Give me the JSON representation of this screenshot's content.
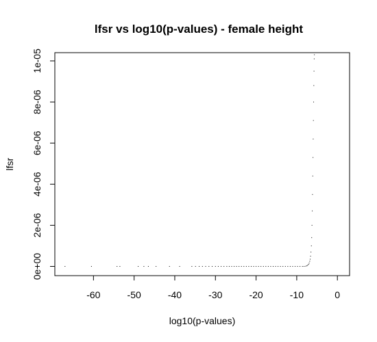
{
  "chart_data": {
    "type": "scatter",
    "title": "lfsr vs log10(p-values) - female height",
    "xlabel": "log10(p-values)",
    "ylabel": "lfsr",
    "xlim": [
      -69.5,
      3
    ],
    "ylim": [
      -4.5e-07,
      1.04e-05
    ],
    "x_ticks": [
      -60,
      -50,
      -40,
      -30,
      -20,
      -10,
      0
    ],
    "x_tick_labels": [
      "-60",
      "-50",
      "-40",
      "-30",
      "-20",
      "-10",
      "0"
    ],
    "y_ticks": [
      0,
      2e-06,
      4e-06,
      6e-06,
      8e-06,
      1e-05
    ],
    "y_tick_labels": [
      "0e+00",
      "2e-06",
      "4e-06",
      "6e-06",
      "8e-06",
      "1e-05"
    ],
    "grid": false,
    "legend": "none",
    "point_color": "#000000",
    "points": [
      {
        "x": -67.0,
        "y": 0
      },
      {
        "x": -60.5,
        "y": 0
      },
      {
        "x": -54.2,
        "y": 0
      },
      {
        "x": -53.5,
        "y": 0
      },
      {
        "x": -49.0,
        "y": 0
      },
      {
        "x": -47.6,
        "y": 0
      },
      {
        "x": -46.5,
        "y": 0
      },
      {
        "x": -44.6,
        "y": 0
      },
      {
        "x": -41.3,
        "y": 0
      },
      {
        "x": -38.8,
        "y": 0
      },
      {
        "x": -35.8,
        "y": 0
      },
      {
        "x": -34.9,
        "y": 0
      },
      {
        "x": -34.0,
        "y": 0
      },
      {
        "x": -33.2,
        "y": 0
      },
      {
        "x": -32.4,
        "y": 0
      },
      {
        "x": -31.6,
        "y": 0
      },
      {
        "x": -30.8,
        "y": 0
      },
      {
        "x": -30.0,
        "y": 0
      },
      {
        "x": -29.3,
        "y": 0
      },
      {
        "x": -28.6,
        "y": 0
      },
      {
        "x": -27.9,
        "y": 0
      },
      {
        "x": -27.2,
        "y": 0
      },
      {
        "x": -26.6,
        "y": 0
      },
      {
        "x": -26.0,
        "y": 0
      },
      {
        "x": -25.4,
        "y": 0
      },
      {
        "x": -24.8,
        "y": 0
      },
      {
        "x": -24.2,
        "y": 0
      },
      {
        "x": -23.6,
        "y": 0
      },
      {
        "x": -23.0,
        "y": 0
      },
      {
        "x": -22.4,
        "y": 0
      },
      {
        "x": -21.8,
        "y": 0
      },
      {
        "x": -21.2,
        "y": 0
      },
      {
        "x": -20.6,
        "y": 0
      },
      {
        "x": -20.0,
        "y": 0
      },
      {
        "x": -19.4,
        "y": 0
      },
      {
        "x": -18.8,
        "y": 0
      },
      {
        "x": -18.2,
        "y": 0
      },
      {
        "x": -17.6,
        "y": 0
      },
      {
        "x": -17.0,
        "y": 0
      },
      {
        "x": -16.4,
        "y": 0
      },
      {
        "x": -15.8,
        "y": 0
      },
      {
        "x": -15.2,
        "y": 0
      },
      {
        "x": -14.6,
        "y": 0
      },
      {
        "x": -14.0,
        "y": 0
      },
      {
        "x": -13.4,
        "y": 0
      },
      {
        "x": -12.8,
        "y": 0
      },
      {
        "x": -12.2,
        "y": 0
      },
      {
        "x": -11.6,
        "y": 0
      },
      {
        "x": -11.0,
        "y": 0
      },
      {
        "x": -10.4,
        "y": 0
      },
      {
        "x": -9.8,
        "y": 0
      },
      {
        "x": -9.2,
        "y": 0
      },
      {
        "x": -8.6,
        "y": 0
      },
      {
        "x": -8.2,
        "y": 0
      },
      {
        "x": -7.8,
        "y": 1e-08
      },
      {
        "x": -7.5,
        "y": 3e-08
      },
      {
        "x": -7.3,
        "y": 6e-08
      },
      {
        "x": -7.1,
        "y": 1e-07
      },
      {
        "x": -6.95,
        "y": 1.6e-07
      },
      {
        "x": -6.8,
        "y": 2.5e-07
      },
      {
        "x": -6.7,
        "y": 3.5e-07
      },
      {
        "x": -6.6,
        "y": 5e-07
      },
      {
        "x": -6.5,
        "y": 7e-07
      },
      {
        "x": -6.4,
        "y": 1e-06
      },
      {
        "x": -6.32,
        "y": 1.4e-06
      },
      {
        "x": -6.25,
        "y": 2e-06
      },
      {
        "x": -6.18,
        "y": 2.7e-06
      },
      {
        "x": -6.12,
        "y": 3.5e-06
      },
      {
        "x": -6.06,
        "y": 4.4e-06
      },
      {
        "x": -6.0,
        "y": 5.3e-06
      },
      {
        "x": -5.95,
        "y": 6.2e-06
      },
      {
        "x": -5.9,
        "y": 7.1e-06
      },
      {
        "x": -5.85,
        "y": 8e-06
      },
      {
        "x": -5.8,
        "y": 8.8e-06
      },
      {
        "x": -5.75,
        "y": 9.5e-06
      },
      {
        "x": -5.7,
        "y": 1.01e-05
      },
      {
        "x": -5.66,
        "y": 1.03e-05
      }
    ]
  }
}
